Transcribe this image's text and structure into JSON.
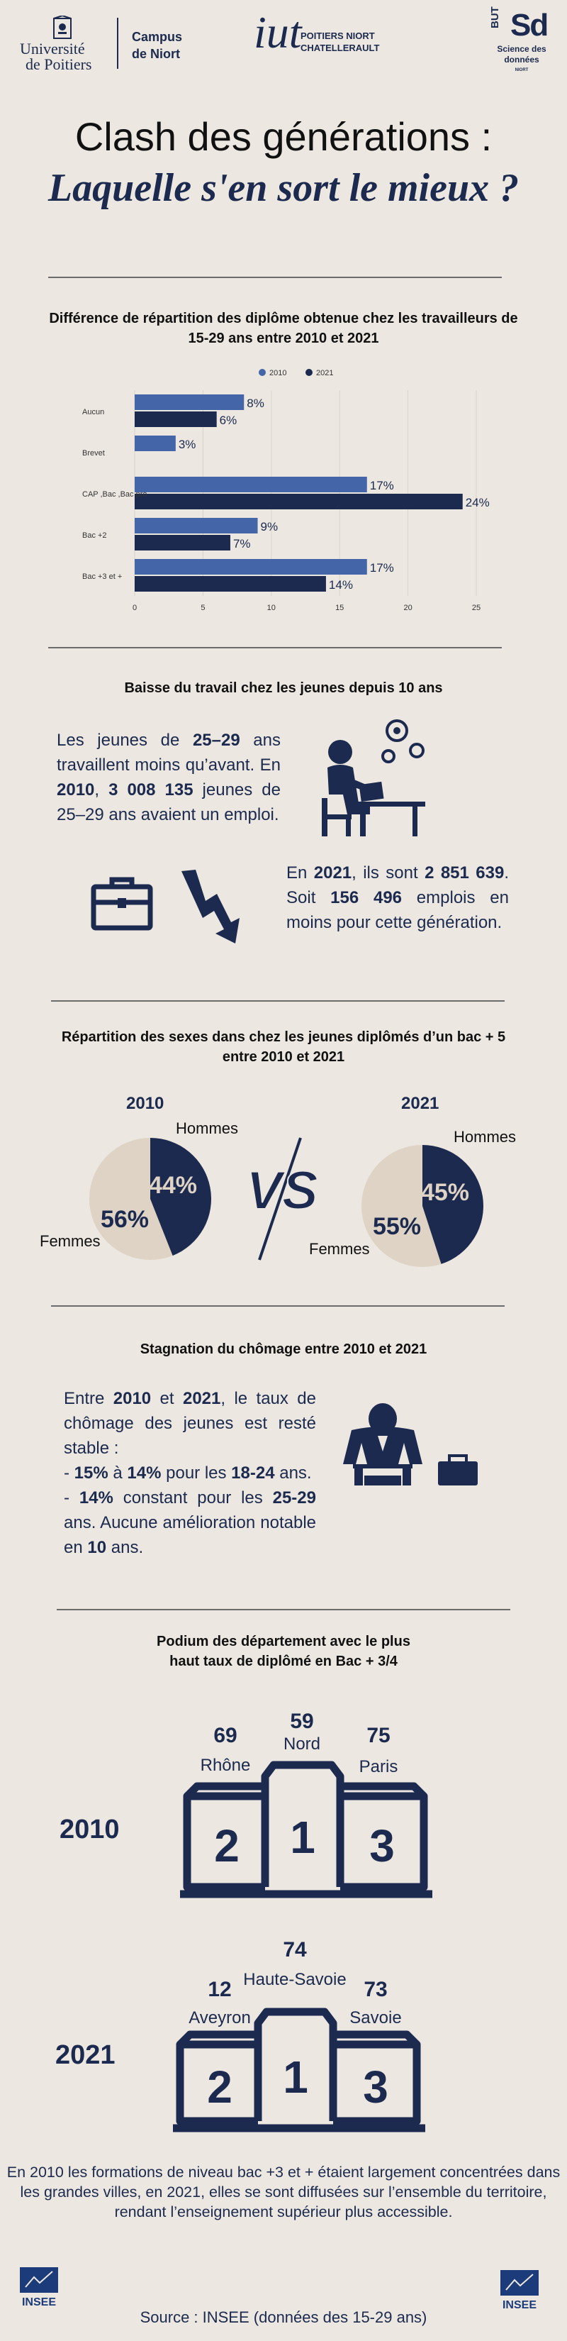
{
  "header": {
    "univ_line1": "Université",
    "univ_line2": "de Poitiers",
    "campus_line1": "Campus",
    "campus_line2": "de Niort",
    "iut_mark": "iut",
    "iut_line1": "POITIERS NIORT",
    "iut_line2": "CHATELLERAULT",
    "but_vertical": "BUT",
    "sd_mark": "Sd",
    "but_line1": "Science des",
    "but_line2": "données",
    "but_line3": "NIORT"
  },
  "title": {
    "line1": "Clash des générations :",
    "line2": "Laquelle s'en sort le mieux ?"
  },
  "section1": {
    "title": "Différence de répartition des diplôme obtenue chez les travailleurs de 15-29 ans entre 2010 et 2021"
  },
  "chart_data": {
    "type": "bar",
    "orientation": "horizontal",
    "categories": [
      "Aucun",
      "Brevet",
      "CAP ,Bac ,Bac pro",
      "Bac +2",
      "Bac +3 et +"
    ],
    "series": [
      {
        "name": "2010",
        "values": [
          8,
          3,
          17,
          9,
          17
        ],
        "labels": [
          "8%",
          "3%",
          "17%",
          "9%",
          "17%"
        ],
        "color": "#4465A8"
      },
      {
        "name": "2021",
        "values": [
          6,
          null,
          24,
          7,
          14
        ],
        "labels": [
          "6%",
          "",
          "24%",
          "7%",
          "14%"
        ],
        "color": "#1B2A4E"
      }
    ],
    "xlim": [
      0,
      25
    ],
    "xticks": [
      "0",
      "5",
      "10",
      "15",
      "20",
      "25"
    ],
    "grid": true,
    "legend": "top-center"
  },
  "section2": {
    "title": "Baisse du travail chez les jeunes depuis 10 ans",
    "p1_a": "Les jeunes de ",
    "p1_b": "25–29",
    "p1_c": " ans travaillent moins qu’avant. En ",
    "p1_d": "2010",
    "p1_e": ", ",
    "p1_f": "3 008 135",
    "p1_g": " jeunes de 25–29 ans avaient un emploi.",
    "p2_a": "En ",
    "p2_b": "2021",
    "p2_c": ", ils sont ",
    "p2_d": "2 851 639",
    "p2_e": ". Soit ",
    "p2_f": "156 496",
    "p2_g": " emplois en moins pour cette génération."
  },
  "section3": {
    "title": "Répartition des sexes dans chez les jeunes diplômés d’un bac + 5 entre 2010 et 2021",
    "vs": "VS",
    "pies": [
      {
        "year": "2010",
        "hommes_label": "Hommes",
        "femmes_label": "Femmes",
        "hommes": 44,
        "femmes": 56,
        "hommes_pct": "44%",
        "femmes_pct": "56%"
      },
      {
        "year": "2021",
        "hommes_label": "Hommes",
        "femmes_label": "Femmes",
        "hommes": 45,
        "femmes": 55,
        "hommes_pct": "45%",
        "femmes_pct": "55%"
      }
    ],
    "colors": {
      "hommes": "#1B2A4E",
      "femmes": "#DED3C4"
    }
  },
  "section4": {
    "title": "Stagnation du chômage entre 2010 et 2021",
    "a": "Entre ",
    "b": "2010",
    "c": " et ",
    "d": "2021",
    "e": ", le taux de chômage des jeunes est resté stable :",
    "l1a": "- ",
    "l1b": "15%",
    "l1c": " à ",
    "l1d": "14%",
    "l1e": " pour les ",
    "l1f": "18-24",
    "l1g": " ans.",
    "l2a": "- ",
    "l2b": "14%",
    "l2c": " constant pour les ",
    "l2d": "25-29",
    "l2e": " ans. Aucune amélioration notable en ",
    "l2f": "10",
    "l2g": " ans."
  },
  "section5": {
    "title_line1": "Podium des département avec le plus",
    "title_line2": "haut taux de diplômé en Bac + 3/4",
    "podiums": [
      {
        "year": "2010",
        "first": {
          "value": "59",
          "name": "Nord"
        },
        "second": {
          "value": "69",
          "name": "Rhône"
        },
        "third": {
          "value": "75",
          "name": "Paris"
        }
      },
      {
        "year": "2021",
        "first": {
          "value": "74",
          "name": "Haute-Savoie"
        },
        "second": {
          "value": "12",
          "name": "Aveyron"
        },
        "third": {
          "value": "73",
          "name": "Savoie"
        }
      }
    ],
    "steps": {
      "first": "1",
      "second": "2",
      "third": "3"
    }
  },
  "conclusion": "En 2010 les formations de niveau bac +3 et + étaient largement concentrées dans les grandes villes, en 2021, elles se sont diffusées sur l’ensemble du territoire, rendant l’enseignement supérieur plus accessible.",
  "footer": {
    "insee_left": "INSEE",
    "insee_right": "INSEE",
    "source": "Source : INSEE (données des 15-29 ans)"
  }
}
